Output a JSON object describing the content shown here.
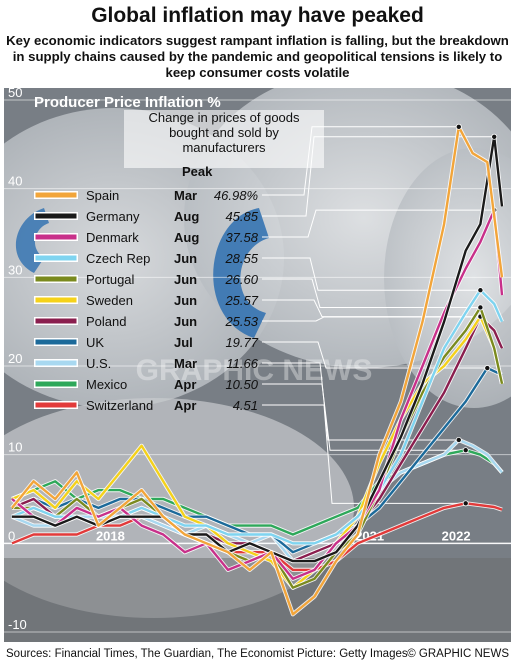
{
  "header": {
    "title": "Global inflation may have peaked",
    "subtitle": "Key economic indicators suggest rampant inflation is falling, but the breakdown in supply chains caused by the pandemic and geopolitical tensions is likely to keep consumer costs volatile"
  },
  "footer": {
    "sources": "Sources: Financial Times, The Guardian, The Economist  Picture: Getty Images",
    "credit": "© GRAPHIC NEWS"
  },
  "watermark": "GRAPHIC NEWS",
  "colors": {
    "Spain": "#f2a53a",
    "Germany": "#1a1a1a",
    "Denmark": "#c8308a",
    "Czech Rep": "#7fd4f0",
    "Portugal": "#7a8a1e",
    "Sweden": "#f5d21a",
    "Poland": "#8a1e4e",
    "UK": "#1c6a9a",
    "U.S.": "#a8d8f0",
    "Mexico": "#2ea85a",
    "Switzerland": "#e23a3a"
  },
  "chart_data": {
    "type": "line",
    "title": "Producer Price Inflation %",
    "note": "Change in prices of goods bought and sold by manufacturers",
    "peak_header": "Peak",
    "yticks": [
      "50",
      "40",
      "30",
      "20",
      "10",
      "0",
      "-10"
    ],
    "ylim": [
      -10,
      50
    ],
    "xticks": [
      "2018",
      "2021",
      "2022"
    ],
    "x_range": [
      2017.0,
      2022.67
    ],
    "series": [
      {
        "name": "Spain",
        "peak_month": "Mar",
        "peak": "46.98%",
        "peak_value": 46.98,
        "peak_x": 2022.17,
        "x": [
          2017.0,
          2017.25,
          2017.5,
          2017.75,
          2018.0,
          2018.25,
          2018.5,
          2018.75,
          2019.0,
          2019.25,
          2019.5,
          2019.75,
          2020.0,
          2020.25,
          2020.5,
          2020.75,
          2021.0,
          2021.25,
          2021.5,
          2021.75,
          2022.0,
          2022.17,
          2022.33,
          2022.5,
          2022.67
        ],
        "values": [
          4,
          7,
          5,
          8,
          2,
          4,
          6,
          3,
          1,
          0,
          -1,
          -3,
          -1,
          -8,
          -6,
          -2,
          1,
          10,
          16,
          25,
          36,
          46.98,
          44,
          43,
          30
        ]
      },
      {
        "name": "Germany",
        "peak_month": "Aug",
        "peak": "45.85",
        "peak_value": 45.85,
        "peak_x": 2022.58,
        "x": [
          2017.0,
          2017.25,
          2017.5,
          2017.75,
          2018.0,
          2018.25,
          2018.5,
          2018.75,
          2019.0,
          2019.25,
          2019.5,
          2019.75,
          2020.0,
          2020.25,
          2020.5,
          2020.75,
          2021.0,
          2021.25,
          2021.5,
          2021.75,
          2022.0,
          2022.25,
          2022.42,
          2022.58,
          2022.67
        ],
        "values": [
          3,
          3,
          2,
          3,
          2,
          3,
          3,
          3,
          1,
          1,
          -1,
          0,
          -1,
          -2,
          -2,
          -1,
          2,
          7,
          12,
          18,
          25,
          33,
          36,
          45.85,
          38
        ]
      },
      {
        "name": "Denmark",
        "peak_month": "Aug",
        "peak": "37.58",
        "peak_value": 37.58,
        "peak_x": 2022.58,
        "x": [
          2017.0,
          2017.25,
          2017.5,
          2017.75,
          2018.0,
          2018.25,
          2018.5,
          2018.75,
          2019.0,
          2019.25,
          2019.5,
          2019.75,
          2020.0,
          2020.25,
          2020.5,
          2020.75,
          2021.0,
          2021.25,
          2021.5,
          2021.75,
          2022.0,
          2022.25,
          2022.42,
          2022.58,
          2022.67
        ],
        "values": [
          5,
          3,
          2,
          4,
          3,
          4,
          2,
          1,
          -1,
          0,
          -3,
          -2,
          -1,
          -4,
          -3,
          0,
          2,
          6,
          14,
          20,
          26,
          31,
          34,
          37.58,
          28
        ]
      },
      {
        "name": "Czech Rep",
        "peak_month": "Jun",
        "peak": "28.55",
        "peak_value": 28.55,
        "peak_x": 2022.42,
        "x": [
          2017.0,
          2017.25,
          2017.5,
          2017.75,
          2018.0,
          2018.25,
          2018.5,
          2018.75,
          2019.0,
          2019.25,
          2019.5,
          2019.75,
          2020.0,
          2020.25,
          2020.5,
          2020.75,
          2021.0,
          2021.25,
          2021.5,
          2021.75,
          2022.0,
          2022.25,
          2022.42,
          2022.58,
          2022.67
        ],
        "values": [
          3,
          4,
          3,
          3,
          2,
          3,
          4,
          3,
          2,
          2,
          1,
          1,
          1,
          0,
          0,
          1,
          3,
          6,
          10,
          16,
          22,
          26,
          28.55,
          27,
          25
        ]
      },
      {
        "name": "Portugal",
        "peak_month": "Jun",
        "peak": "26.60",
        "peak_value": 26.6,
        "peak_x": 2022.42,
        "x": [
          2017.0,
          2017.25,
          2017.5,
          2017.75,
          2018.0,
          2018.25,
          2018.5,
          2018.75,
          2019.0,
          2019.25,
          2019.5,
          2019.75,
          2020.0,
          2020.25,
          2020.5,
          2020.75,
          2021.0,
          2021.25,
          2021.5,
          2021.75,
          2022.0,
          2022.25,
          2022.42,
          2022.58,
          2022.67
        ],
        "values": [
          4,
          4,
          3,
          5,
          3,
          4,
          5,
          3,
          1,
          0,
          -1,
          -2,
          -1,
          -5,
          -4,
          -1,
          1,
          6,
          12,
          17,
          21,
          24,
          26.6,
          22,
          18
        ]
      },
      {
        "name": "Sweden",
        "peak_month": "Jun",
        "peak": "25.57",
        "peak_value": 25.57,
        "peak_x": 2022.42,
        "x": [
          2017.0,
          2017.25,
          2017.5,
          2017.75,
          2018.0,
          2018.25,
          2018.5,
          2018.75,
          2019.0,
          2019.25,
          2019.5,
          2019.75,
          2020.0,
          2020.25,
          2020.5,
          2020.75,
          2021.0,
          2021.25,
          2021.5,
          2021.75,
          2022.0,
          2022.25,
          2022.42,
          2022.58,
          2022.67
        ],
        "values": [
          5,
          6,
          4,
          7,
          5,
          8,
          11,
          7,
          3,
          2,
          0,
          -1,
          -2,
          -5,
          -3,
          0,
          3,
          9,
          14,
          18,
          20,
          23,
          25.57,
          22,
          18
        ]
      },
      {
        "name": "Poland",
        "peak_month": "Jun",
        "peak": "25.53",
        "peak_value": 25.53,
        "peak_x": 2022.42,
        "x": [
          2017.0,
          2017.25,
          2017.5,
          2017.75,
          2018.0,
          2018.25,
          2018.5,
          2018.75,
          2019.0,
          2019.25,
          2019.5,
          2019.75,
          2020.0,
          2020.25,
          2020.5,
          2020.75,
          2021.0,
          2021.25,
          2021.5,
          2021.75,
          2022.0,
          2022.25,
          2022.42,
          2022.58,
          2022.67
        ],
        "values": [
          4,
          5,
          3,
          3,
          2,
          3,
          4,
          3,
          1,
          1,
          0,
          0,
          -1,
          -2,
          -1,
          0,
          2,
          5,
          9,
          13,
          17,
          22,
          25.53,
          24,
          22
        ]
      },
      {
        "name": "UK",
        "peak_month": "Jul",
        "peak": "19.77",
        "peak_value": 19.77,
        "peak_x": 2022.5,
        "x": [
          2017.0,
          2017.25,
          2017.5,
          2017.75,
          2018.0,
          2018.25,
          2018.5,
          2018.75,
          2019.0,
          2019.25,
          2019.5,
          2019.75,
          2020.0,
          2020.25,
          2020.5,
          2020.75,
          2021.0,
          2021.25,
          2021.5,
          2021.75,
          2022.0,
          2022.25,
          2022.5,
          2022.67
        ],
        "values": [
          4,
          5,
          4,
          5,
          4,
          5,
          5,
          4,
          3,
          3,
          2,
          1,
          1,
          -1,
          0,
          1,
          2,
          4,
          7,
          10,
          13,
          16,
          19.77,
          19
        ]
      },
      {
        "name": "U.S.",
        "peak_month": "Mar",
        "peak": "11.66",
        "peak_value": 11.66,
        "peak_x": 2022.17,
        "x": [
          2017.0,
          2017.25,
          2017.5,
          2017.75,
          2018.0,
          2018.25,
          2018.5,
          2018.75,
          2019.0,
          2019.25,
          2019.5,
          2019.75,
          2020.0,
          2020.25,
          2020.5,
          2020.75,
          2021.0,
          2021.25,
          2021.5,
          2021.75,
          2022.0,
          2022.17,
          2022.33,
          2022.5,
          2022.67
        ],
        "values": [
          3,
          2,
          2,
          3,
          3,
          3,
          3,
          2,
          1,
          2,
          1,
          0,
          1,
          -2,
          -1,
          0,
          2,
          6,
          8,
          9,
          10,
          11.66,
          11,
          10,
          8
        ]
      },
      {
        "name": "Mexico",
        "peak_month": "Apr",
        "peak": "10.50",
        "peak_value": 10.5,
        "peak_x": 2022.25,
        "x": [
          2017.0,
          2017.25,
          2017.5,
          2017.75,
          2018.0,
          2018.25,
          2018.5,
          2018.75,
          2019.0,
          2019.25,
          2019.5,
          2019.75,
          2020.0,
          2020.25,
          2020.5,
          2020.75,
          2021.0,
          2021.25,
          2021.5,
          2021.75,
          2022.0,
          2022.25,
          2022.42,
          2022.58,
          2022.67
        ],
        "values": [
          5,
          6,
          7,
          5,
          6,
          6,
          5,
          5,
          4,
          3,
          2,
          2,
          2,
          1,
          2,
          3,
          4,
          7,
          8,
          9,
          10,
          10.5,
          10,
          9,
          8
        ]
      },
      {
        "name": "Switzerland",
        "peak_month": "Apr",
        "peak": "4.51",
        "peak_value": 4.51,
        "peak_x": 2022.25,
        "x": [
          2017.0,
          2017.25,
          2017.5,
          2017.75,
          2018.0,
          2018.25,
          2018.5,
          2018.75,
          2019.0,
          2019.25,
          2019.5,
          2019.75,
          2020.0,
          2020.25,
          2020.5,
          2020.75,
          2021.0,
          2021.25,
          2021.5,
          2021.75,
          2022.0,
          2022.25,
          2022.42,
          2022.58,
          2022.67
        ],
        "values": [
          0,
          1,
          1,
          1,
          2,
          2,
          3,
          2,
          1,
          0,
          -1,
          -1,
          -1,
          -3,
          -3,
          -2,
          0,
          1,
          2,
          3,
          4,
          4.51,
          4.3,
          4.1,
          3.8
        ]
      }
    ]
  }
}
